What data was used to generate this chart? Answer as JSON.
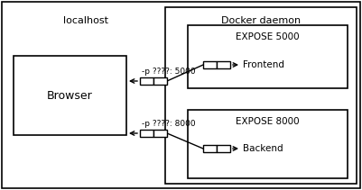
{
  "fig_width": 4.01,
  "fig_height": 2.11,
  "dpi": 100,
  "bg_color": "#ffffff",
  "localhost_label": "localhost",
  "docker_label": "Docker daemon",
  "browser_label": "Browser",
  "frontend_label": "Frontend",
  "backend_label": "Backend",
  "expose5000_label": "EXPOSE 5000",
  "expose8000_label": "EXPOSE 8000",
  "port5000_label": "-p ????: 5000",
  "port8000_label": "-p ????: 8000",
  "font_size": 8,
  "small_font_size": 7.5
}
